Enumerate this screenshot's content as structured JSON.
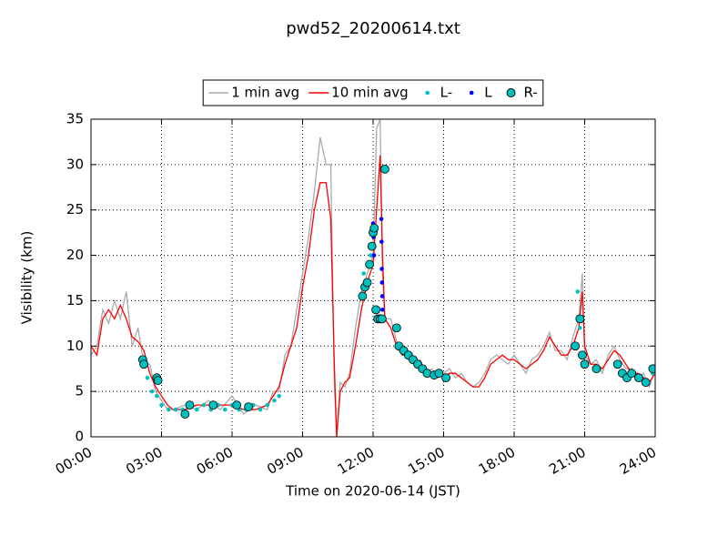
{
  "chart_data": {
    "type": "line",
    "title": "pwd52_20200614.txt",
    "x_label": "Time on 2020-06-14 (JST)",
    "y_label": "Visibility (km)",
    "xlim": [
      0,
      24
    ],
    "ylim": [
      0,
      35
    ],
    "xticks": [
      {
        "value": 0,
        "label": "00:00"
      },
      {
        "value": 3,
        "label": "03:00"
      },
      {
        "value": 6,
        "label": "06:00"
      },
      {
        "value": 9,
        "label": "09:00"
      },
      {
        "value": 12,
        "label": "12:00"
      },
      {
        "value": 15,
        "label": "15:00"
      },
      {
        "value": 18,
        "label": "18:00"
      },
      {
        "value": 21,
        "label": "21:00"
      },
      {
        "value": 24,
        "label": "24:00"
      }
    ],
    "yticks": [
      0,
      5,
      10,
      15,
      20,
      25,
      30,
      35
    ],
    "grid": true,
    "legend": "top",
    "x": [
      0,
      0.25,
      0.5,
      0.75,
      1,
      1.25,
      1.5,
      1.75,
      2,
      2.25,
      2.5,
      2.75,
      3,
      3.25,
      3.5,
      4,
      4.5,
      5,
      5.5,
      6,
      6.5,
      7,
      7.5,
      7.75,
      8,
      8.25,
      8.5,
      8.75,
      9,
      9.25,
      9.5,
      9.75,
      10,
      10.2,
      10.35,
      10.45,
      10.6,
      10.8,
      11,
      11.25,
      11.5,
      11.75,
      12,
      12.15,
      12.3,
      12.4,
      12.5,
      12.75,
      13,
      13.25,
      13.5,
      13.75,
      14,
      14.25,
      14.5,
      14.75,
      15,
      15.25,
      15.5,
      15.75,
      16,
      16.25,
      16.5,
      16.75,
      17,
      17.25,
      17.5,
      17.75,
      18,
      18.25,
      18.5,
      18.75,
      19,
      19.25,
      19.5,
      19.75,
      20,
      20.25,
      20.5,
      20.75,
      20.9,
      21,
      21.25,
      21.5,
      21.75,
      22,
      22.25,
      22.5,
      22.75,
      23,
      23.25,
      23.5,
      23.75,
      24
    ],
    "series": [
      {
        "name": "1 min avg",
        "color": "#aaaaaa",
        "style": "line",
        "values": [
          9,
          10,
          14,
          12.5,
          15,
          13,
          16,
          10,
          12,
          8,
          8,
          5,
          4,
          3,
          3,
          3.5,
          3,
          4,
          3,
          4.5,
          2.5,
          3.5,
          3,
          5,
          5,
          9,
          10,
          14,
          18,
          22,
          27,
          33,
          30,
          30,
          6,
          0,
          6,
          5.5,
          7,
          12,
          16,
          18,
          20,
          34,
          35,
          18,
          13,
          13,
          10.5,
          9.5,
          8.5,
          8,
          8.5,
          7,
          7.5,
          6.5,
          7,
          7.5,
          6.5,
          7,
          6,
          5.5,
          6,
          7,
          8.5,
          9,
          8.5,
          8,
          9,
          8,
          7,
          8.5,
          9,
          10,
          11.5,
          9.5,
          9.5,
          8.5,
          11,
          13,
          18,
          9,
          8,
          8.5,
          7,
          9,
          10,
          8.5,
          7.5,
          7.5,
          6.5,
          7,
          5.5,
          7.5
        ]
      },
      {
        "name": "10 min avg",
        "color": "#ff0000",
        "style": "line",
        "values": [
          10,
          9,
          13,
          14,
          13,
          14.5,
          13,
          11,
          10.5,
          9.5,
          7,
          5.5,
          4.5,
          3.5,
          3,
          3,
          3.5,
          3.5,
          3.5,
          3.5,
          3,
          3,
          3.5,
          4.5,
          5.5,
          8,
          10,
          12,
          16.5,
          20,
          25,
          28,
          28,
          24,
          8,
          0,
          5,
          6,
          6.5,
          10,
          14,
          17,
          19,
          25,
          31,
          20,
          13,
          12,
          10,
          9,
          9,
          8.5,
          8,
          7.5,
          7,
          7,
          6.5,
          7,
          7,
          6.5,
          6,
          5.5,
          5.5,
          6.5,
          8,
          8.5,
          9,
          8.5,
          8.5,
          8,
          7.5,
          8,
          8.5,
          9.5,
          11,
          10,
          9,
          9,
          10,
          12,
          16,
          10,
          8,
          8,
          7.5,
          8.5,
          9.5,
          9,
          8,
          7,
          7,
          6.5,
          6,
          7
        ]
      },
      {
        "name": "L-",
        "color": "#00bfbf",
        "style": "dot",
        "x": [
          2.2,
          2.4,
          2.6,
          2.8,
          3.0,
          3.3,
          3.6,
          3.9,
          4.2,
          4.5,
          4.8,
          5.1,
          5.4,
          5.7,
          6.0,
          6.3,
          6.6,
          6.9,
          7.2,
          7.5,
          7.8,
          8.0,
          11.6,
          11.9,
          12.2,
          20.7,
          20.8,
          22.4,
          22.7,
          23.0,
          23.3,
          23.6,
          23.9
        ],
        "values": [
          8,
          6.5,
          5,
          4.5,
          3.5,
          3,
          3,
          3,
          3.5,
          3,
          3.5,
          3,
          3.5,
          3,
          3.5,
          3,
          3,
          3.5,
          3,
          3.5,
          4,
          4.5,
          18,
          20,
          14,
          16,
          12,
          8,
          7,
          7,
          6.5,
          6,
          7
        ]
      },
      {
        "name": "L",
        "color": "#0000ff",
        "style": "dot",
        "x": [
          12.0,
          12.02,
          12.04,
          12.35,
          12.36,
          12.37,
          12.38,
          12.39,
          12.4
        ],
        "values": [
          23.5,
          22,
          20,
          24,
          21.5,
          18.5,
          17,
          15.5,
          14
        ]
      },
      {
        "name": "R-",
        "color": "#00bfbf",
        "style": "circle",
        "x": [
          2.2,
          2.25,
          2.8,
          2.85,
          4.0,
          4.2,
          5.2,
          6.2,
          6.7,
          11.55,
          11.65,
          11.75,
          11.85,
          11.95,
          12.0,
          12.05,
          12.12,
          12.2,
          12.3,
          12.38,
          12.5,
          13.0,
          13.1,
          13.3,
          13.5,
          13.7,
          13.9,
          14.1,
          14.3,
          14.6,
          14.8,
          15.1,
          20.6,
          20.8,
          20.9,
          21.0,
          21.5,
          22.4,
          22.6,
          22.8,
          23.0,
          23.3,
          23.6,
          23.9
        ],
        "values": [
          8.5,
          8,
          6.5,
          6.2,
          2.5,
          3.5,
          3.5,
          3.5,
          3.3,
          15.5,
          16.5,
          17,
          19,
          21,
          22.5,
          23,
          14,
          13,
          13,
          13,
          29.5,
          12,
          10,
          9.5,
          9,
          8.5,
          8,
          7.5,
          7,
          6.8,
          7,
          6.5,
          10,
          13,
          9,
          8,
          7.5,
          8,
          7,
          6.5,
          7,
          6.5,
          6,
          7.5
        ]
      }
    ]
  }
}
